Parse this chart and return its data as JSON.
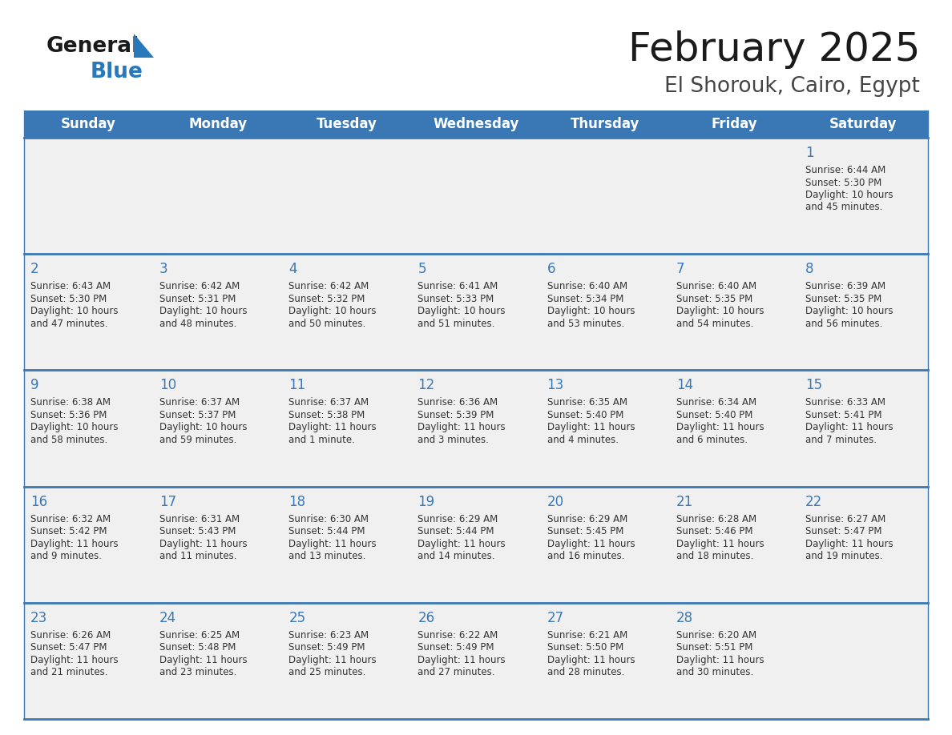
{
  "title": "February 2025",
  "subtitle": "El Shorouk, Cairo, Egypt",
  "days_of_week": [
    "Sunday",
    "Monday",
    "Tuesday",
    "Wednesday",
    "Thursday",
    "Friday",
    "Saturday"
  ],
  "header_bg": "#3a78b5",
  "header_text": "#ffffff",
  "row_bg": "#f0f0f0",
  "row_bg_white": "#ffffff",
  "day_num_color": "#3a78b5",
  "cell_text_color": "#333333",
  "separator_color": "#3a78b5",
  "bg_color": "#ffffff",
  "logo_black": "#1a1a1a",
  "logo_blue": "#2878bc",
  "calendar_data": [
    [
      null,
      null,
      null,
      null,
      null,
      null,
      {
        "day": "1",
        "sunrise": "6:44 AM",
        "sunset": "5:30 PM",
        "daylight": "10 hours\nand 45 minutes."
      }
    ],
    [
      {
        "day": "2",
        "sunrise": "6:43 AM",
        "sunset": "5:30 PM",
        "daylight": "10 hours\nand 47 minutes."
      },
      {
        "day": "3",
        "sunrise": "6:42 AM",
        "sunset": "5:31 PM",
        "daylight": "10 hours\nand 48 minutes."
      },
      {
        "day": "4",
        "sunrise": "6:42 AM",
        "sunset": "5:32 PM",
        "daylight": "10 hours\nand 50 minutes."
      },
      {
        "day": "5",
        "sunrise": "6:41 AM",
        "sunset": "5:33 PM",
        "daylight": "10 hours\nand 51 minutes."
      },
      {
        "day": "6",
        "sunrise": "6:40 AM",
        "sunset": "5:34 PM",
        "daylight": "10 hours\nand 53 minutes."
      },
      {
        "day": "7",
        "sunrise": "6:40 AM",
        "sunset": "5:35 PM",
        "daylight": "10 hours\nand 54 minutes."
      },
      {
        "day": "8",
        "sunrise": "6:39 AM",
        "sunset": "5:35 PM",
        "daylight": "10 hours\nand 56 minutes."
      }
    ],
    [
      {
        "day": "9",
        "sunrise": "6:38 AM",
        "sunset": "5:36 PM",
        "daylight": "10 hours\nand 58 minutes."
      },
      {
        "day": "10",
        "sunrise": "6:37 AM",
        "sunset": "5:37 PM",
        "daylight": "10 hours\nand 59 minutes."
      },
      {
        "day": "11",
        "sunrise": "6:37 AM",
        "sunset": "5:38 PM",
        "daylight": "11 hours\nand 1 minute."
      },
      {
        "day": "12",
        "sunrise": "6:36 AM",
        "sunset": "5:39 PM",
        "daylight": "11 hours\nand 3 minutes."
      },
      {
        "day": "13",
        "sunrise": "6:35 AM",
        "sunset": "5:40 PM",
        "daylight": "11 hours\nand 4 minutes."
      },
      {
        "day": "14",
        "sunrise": "6:34 AM",
        "sunset": "5:40 PM",
        "daylight": "11 hours\nand 6 minutes."
      },
      {
        "day": "15",
        "sunrise": "6:33 AM",
        "sunset": "5:41 PM",
        "daylight": "11 hours\nand 7 minutes."
      }
    ],
    [
      {
        "day": "16",
        "sunrise": "6:32 AM",
        "sunset": "5:42 PM",
        "daylight": "11 hours\nand 9 minutes."
      },
      {
        "day": "17",
        "sunrise": "6:31 AM",
        "sunset": "5:43 PM",
        "daylight": "11 hours\nand 11 minutes."
      },
      {
        "day": "18",
        "sunrise": "6:30 AM",
        "sunset": "5:44 PM",
        "daylight": "11 hours\nand 13 minutes."
      },
      {
        "day": "19",
        "sunrise": "6:29 AM",
        "sunset": "5:44 PM",
        "daylight": "11 hours\nand 14 minutes."
      },
      {
        "day": "20",
        "sunrise": "6:29 AM",
        "sunset": "5:45 PM",
        "daylight": "11 hours\nand 16 minutes."
      },
      {
        "day": "21",
        "sunrise": "6:28 AM",
        "sunset": "5:46 PM",
        "daylight": "11 hours\nand 18 minutes."
      },
      {
        "day": "22",
        "sunrise": "6:27 AM",
        "sunset": "5:47 PM",
        "daylight": "11 hours\nand 19 minutes."
      }
    ],
    [
      {
        "day": "23",
        "sunrise": "6:26 AM",
        "sunset": "5:47 PM",
        "daylight": "11 hours\nand 21 minutes."
      },
      {
        "day": "24",
        "sunrise": "6:25 AM",
        "sunset": "5:48 PM",
        "daylight": "11 hours\nand 23 minutes."
      },
      {
        "day": "25",
        "sunrise": "6:23 AM",
        "sunset": "5:49 PM",
        "daylight": "11 hours\nand 25 minutes."
      },
      {
        "day": "26",
        "sunrise": "6:22 AM",
        "sunset": "5:49 PM",
        "daylight": "11 hours\nand 27 minutes."
      },
      {
        "day": "27",
        "sunrise": "6:21 AM",
        "sunset": "5:50 PM",
        "daylight": "11 hours\nand 28 minutes."
      },
      {
        "day": "28",
        "sunrise": "6:20 AM",
        "sunset": "5:51 PM",
        "daylight": "11 hours\nand 30 minutes."
      },
      null
    ]
  ]
}
